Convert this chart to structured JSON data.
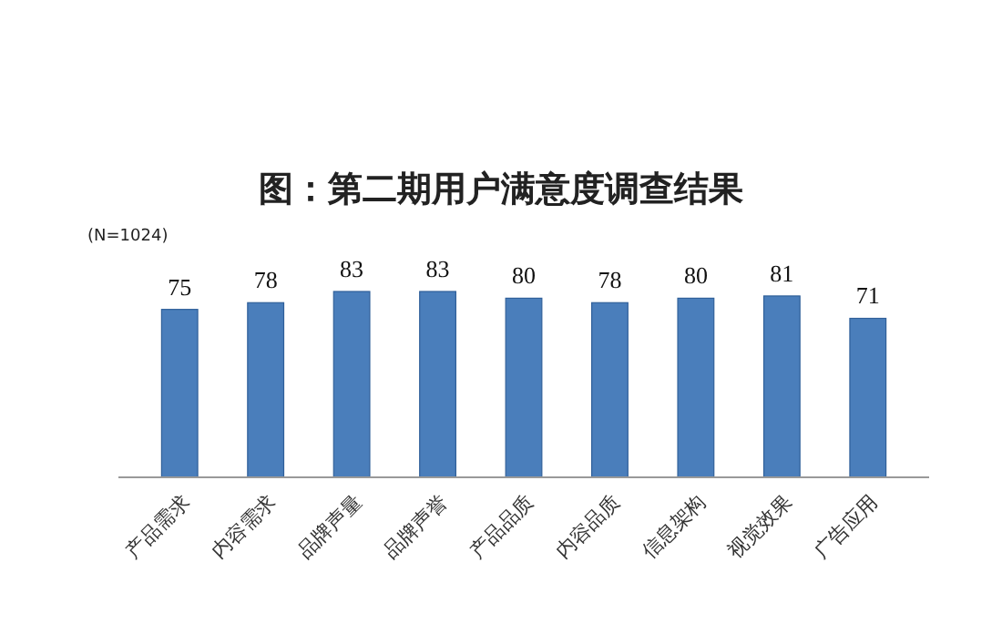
{
  "chart_data": {
    "type": "bar",
    "title": "图：第二期用户满意度调查结果",
    "annotations": [
      "(N=1024)"
    ],
    "categories": [
      "产品需求",
      "内容需求",
      "品牌声量",
      "品牌声誉",
      "产品品质",
      "内容品质",
      "信息架构",
      "视觉效果",
      "广告应用"
    ],
    "values": [
      75,
      78,
      83,
      83,
      80,
      78,
      80,
      81,
      71
    ],
    "color": "#4a7ebb",
    "data_labels": true
  }
}
